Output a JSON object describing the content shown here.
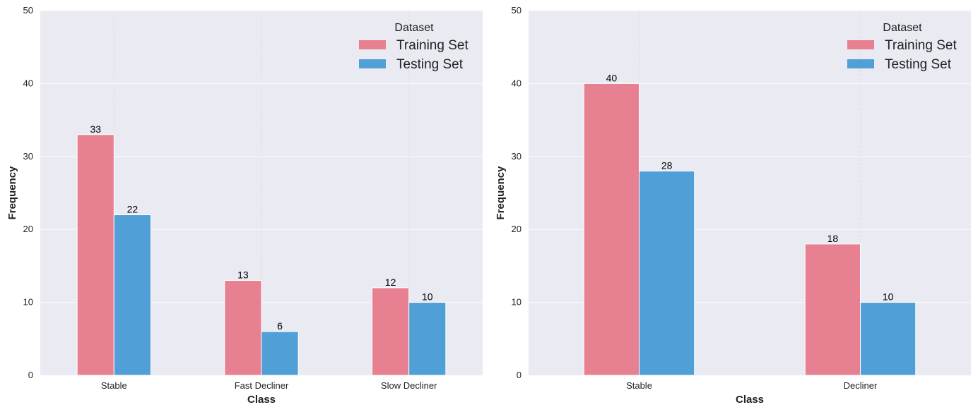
{
  "chart_data": [
    {
      "type": "bar",
      "title": "",
      "xlabel": "Class",
      "ylabel": "Frequency",
      "ylim": [
        0,
        50
      ],
      "yticks": [
        0,
        10,
        20,
        30,
        40,
        50
      ],
      "grid": true,
      "legend": {
        "title": "Dataset",
        "placement": "top-right"
      },
      "categories": [
        "Stable",
        "Fast Decliner",
        "Slow Decliner"
      ],
      "series": [
        {
          "name": "Training Set",
          "color": "#e78091",
          "values": [
            33,
            13,
            12
          ]
        },
        {
          "name": "Testing Set",
          "color": "#519fd7",
          "values": [
            22,
            6,
            10
          ]
        }
      ]
    },
    {
      "type": "bar",
      "title": "",
      "xlabel": "Class",
      "ylabel": "Frequency",
      "ylim": [
        0,
        50
      ],
      "yticks": [
        0,
        10,
        20,
        30,
        40,
        50
      ],
      "grid": true,
      "legend": {
        "title": "Dataset",
        "placement": "top-right"
      },
      "categories": [
        "Stable",
        "Decliner"
      ],
      "series": [
        {
          "name": "Training Set",
          "color": "#e78091",
          "values": [
            40,
            18
          ]
        },
        {
          "name": "Testing Set",
          "color": "#519fd7",
          "values": [
            28,
            10
          ]
        }
      ]
    }
  ]
}
